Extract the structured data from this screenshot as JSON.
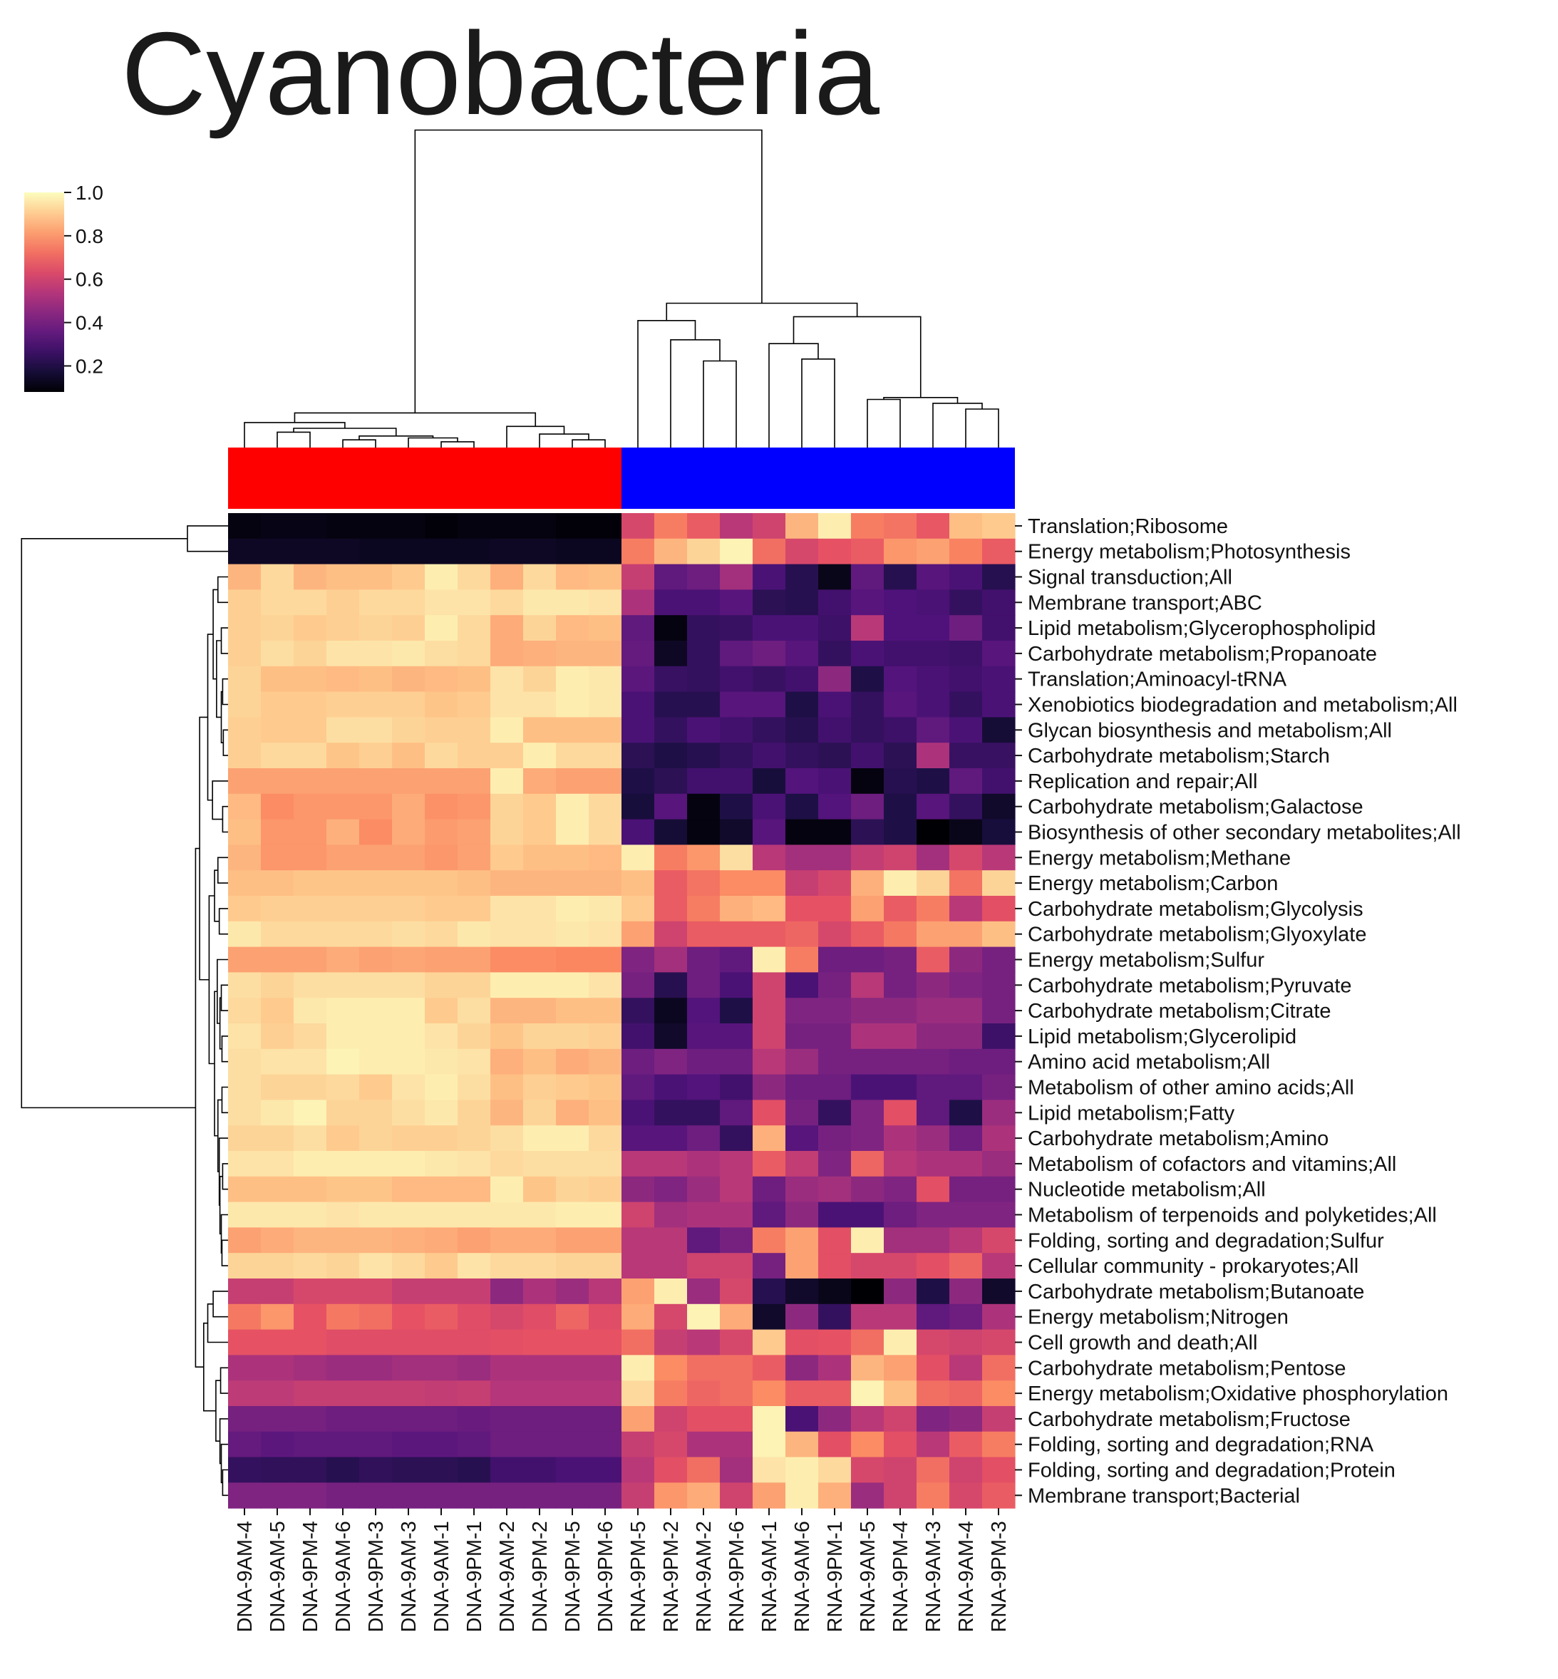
{
  "chart_data": {
    "type": "heatmap",
    "title": "Cyanobacteria",
    "colormap": "magma",
    "colorbar": {
      "min": 0.08,
      "max": 1.0,
      "ticks": [
        0.2,
        0.4,
        0.6,
        0.8,
        1.0
      ],
      "tick_labels": [
        "0.2",
        "0.4",
        "0.6",
        "0.8",
        "1.0"
      ]
    },
    "columns": [
      "DNA-9AM-4",
      "DNA-9AM-5",
      "DNA-9PM-4",
      "DNA-9AM-6",
      "DNA-9PM-3",
      "DNA-9AM-3",
      "DNA-9AM-1",
      "DNA-9PM-1",
      "DNA-9AM-2",
      "DNA-9PM-2",
      "DNA-9PM-5",
      "DNA-9PM-6",
      "RNA-9PM-5",
      "RNA-9PM-2",
      "RNA-9AM-2",
      "RNA-9PM-6",
      "RNA-9AM-1",
      "RNA-9AM-6",
      "RNA-9PM-1",
      "RNA-9AM-5",
      "RNA-9PM-4",
      "RNA-9AM-3",
      "RNA-9AM-4",
      "RNA-9PM-3"
    ],
    "column_groups": [
      {
        "color": "#ff0000",
        "start": 0,
        "end": 11
      },
      {
        "color": "#0000ff",
        "start": 12,
        "end": 23
      }
    ],
    "rows": [
      "Translation;Ribosome",
      "Energy metabolism;Photosynthesis",
      "Signal transduction;All",
      "Membrane transport;ABC",
      "Lipid metabolism;Glycerophospholipid",
      "Carbohydrate metabolism;Propanoate",
      "Translation;Aminoacyl-tRNA",
      "Xenobiotics biodegradation and metabolism;All",
      "Glycan biosynthesis and metabolism;All",
      "Carbohydrate metabolism;Starch",
      "Replication and repair;All",
      "Carbohydrate metabolism;Galactose",
      "Biosynthesis of other secondary metabolites;All",
      "Energy metabolism;Methane",
      "Energy metabolism;Carbon",
      "Carbohydrate metabolism;Glycolysis",
      "Carbohydrate metabolism;Glyoxylate",
      "Energy metabolism;Sulfur",
      "Carbohydrate metabolism;Pyruvate",
      "Carbohydrate metabolism;Citrate",
      "Lipid metabolism;Glycerolipid",
      "Amino acid metabolism;All",
      "Metabolism of other amino acids;All",
      "Lipid metabolism;Fatty",
      "Carbohydrate metabolism;Amino",
      "Metabolism of cofactors and vitamins;All",
      "Nucleotide metabolism;All",
      "Metabolism of terpenoids and polyketides;All",
      "Folding, sorting and degradation;Sulfur",
      "Cellular community - prokaryotes;All",
      "Carbohydrate metabolism;Butanoate",
      "Energy metabolism;Nitrogen",
      "Cell growth and death;All",
      "Carbohydrate metabolism;Pentose",
      "Energy metabolism;Oxidative phosphorylation",
      "Carbohydrate metabolism;Fructose",
      "Folding, sorting and degradation;RNA",
      "Folding, sorting and degradation;Protein",
      "Membrane transport;Bacterial"
    ],
    "values": [
      [
        0.1,
        0.11,
        0.11,
        0.1,
        0.1,
        0.1,
        0.09,
        0.1,
        0.1,
        0.1,
        0.09,
        0.09,
        0.62,
        0.75,
        0.68,
        0.55,
        0.6,
        0.86,
        0.97,
        0.75,
        0.73,
        0.67,
        0.88,
        0.9
      ],
      [
        0.14,
        0.14,
        0.14,
        0.14,
        0.13,
        0.13,
        0.13,
        0.13,
        0.14,
        0.14,
        0.13,
        0.13,
        0.75,
        0.86,
        0.92,
        0.98,
        0.72,
        0.62,
        0.66,
        0.68,
        0.8,
        0.82,
        0.76,
        0.68
      ],
      [
        0.86,
        0.93,
        0.86,
        0.88,
        0.88,
        0.9,
        0.97,
        0.93,
        0.85,
        0.93,
        0.87,
        0.88,
        0.58,
        0.35,
        0.38,
        0.5,
        0.3,
        0.22,
        0.12,
        0.35,
        0.22,
        0.33,
        0.3,
        0.22
      ],
      [
        0.91,
        0.93,
        0.93,
        0.91,
        0.93,
        0.93,
        0.95,
        0.95,
        0.93,
        0.96,
        0.96,
        0.95,
        0.52,
        0.3,
        0.3,
        0.33,
        0.23,
        0.22,
        0.28,
        0.33,
        0.31,
        0.3,
        0.25,
        0.28
      ],
      [
        0.91,
        0.92,
        0.9,
        0.91,
        0.92,
        0.91,
        0.97,
        0.93,
        0.84,
        0.92,
        0.87,
        0.88,
        0.35,
        0.1,
        0.25,
        0.26,
        0.3,
        0.3,
        0.27,
        0.55,
        0.31,
        0.31,
        0.38,
        0.28
      ],
      [
        0.91,
        0.94,
        0.92,
        0.95,
        0.95,
        0.96,
        0.94,
        0.93,
        0.84,
        0.85,
        0.86,
        0.86,
        0.36,
        0.14,
        0.25,
        0.35,
        0.38,
        0.33,
        0.25,
        0.3,
        0.28,
        0.28,
        0.27,
        0.33
      ],
      [
        0.92,
        0.88,
        0.88,
        0.87,
        0.88,
        0.86,
        0.87,
        0.88,
        0.95,
        0.92,
        0.97,
        0.96,
        0.34,
        0.26,
        0.25,
        0.28,
        0.26,
        0.28,
        0.45,
        0.2,
        0.32,
        0.3,
        0.28,
        0.3
      ],
      [
        0.92,
        0.9,
        0.9,
        0.91,
        0.91,
        0.91,
        0.89,
        0.9,
        0.95,
        0.95,
        0.97,
        0.96,
        0.3,
        0.22,
        0.22,
        0.33,
        0.33,
        0.2,
        0.3,
        0.25,
        0.33,
        0.3,
        0.25,
        0.3
      ],
      [
        0.91,
        0.9,
        0.9,
        0.94,
        0.94,
        0.92,
        0.91,
        0.91,
        0.97,
        0.88,
        0.88,
        0.88,
        0.3,
        0.25,
        0.3,
        0.28,
        0.25,
        0.22,
        0.28,
        0.25,
        0.27,
        0.35,
        0.3,
        0.17
      ],
      [
        0.91,
        0.93,
        0.93,
        0.89,
        0.91,
        0.88,
        0.93,
        0.91,
        0.91,
        0.97,
        0.93,
        0.93,
        0.23,
        0.2,
        0.22,
        0.25,
        0.28,
        0.25,
        0.23,
        0.28,
        0.23,
        0.52,
        0.26,
        0.26
      ],
      [
        0.82,
        0.82,
        0.82,
        0.82,
        0.82,
        0.82,
        0.82,
        0.82,
        0.97,
        0.84,
        0.82,
        0.82,
        0.2,
        0.23,
        0.28,
        0.28,
        0.18,
        0.32,
        0.3,
        0.1,
        0.22,
        0.2,
        0.35,
        0.28
      ],
      [
        0.87,
        0.78,
        0.8,
        0.8,
        0.8,
        0.84,
        0.79,
        0.8,
        0.92,
        0.9,
        0.97,
        0.93,
        0.18,
        0.33,
        0.1,
        0.2,
        0.3,
        0.2,
        0.32,
        0.38,
        0.2,
        0.33,
        0.25,
        0.15
      ],
      [
        0.88,
        0.8,
        0.8,
        0.85,
        0.78,
        0.84,
        0.81,
        0.82,
        0.92,
        0.9,
        0.97,
        0.93,
        0.3,
        0.17,
        0.1,
        0.15,
        0.33,
        0.1,
        0.1,
        0.23,
        0.2,
        0.03,
        0.12,
        0.18
      ],
      [
        0.86,
        0.8,
        0.8,
        0.82,
        0.82,
        0.82,
        0.8,
        0.82,
        0.9,
        0.88,
        0.88,
        0.87,
        0.97,
        0.75,
        0.8,
        0.94,
        0.55,
        0.5,
        0.5,
        0.57,
        0.6,
        0.5,
        0.62,
        0.55
      ],
      [
        0.88,
        0.88,
        0.89,
        0.89,
        0.89,
        0.89,
        0.89,
        0.88,
        0.86,
        0.86,
        0.86,
        0.86,
        0.88,
        0.68,
        0.73,
        0.78,
        0.78,
        0.58,
        0.62,
        0.85,
        0.97,
        0.92,
        0.73,
        0.92
      ],
      [
        0.9,
        0.91,
        0.91,
        0.91,
        0.91,
        0.91,
        0.9,
        0.9,
        0.95,
        0.95,
        0.97,
        0.96,
        0.9,
        0.68,
        0.75,
        0.85,
        0.87,
        0.66,
        0.66,
        0.82,
        0.68,
        0.75,
        0.55,
        0.65
      ],
      [
        0.96,
        0.93,
        0.93,
        0.93,
        0.93,
        0.94,
        0.93,
        0.96,
        0.95,
        0.95,
        0.96,
        0.95,
        0.82,
        0.6,
        0.68,
        0.68,
        0.68,
        0.7,
        0.62,
        0.68,
        0.74,
        0.82,
        0.82,
        0.88
      ],
      [
        0.82,
        0.82,
        0.82,
        0.84,
        0.82,
        0.83,
        0.82,
        0.82,
        0.78,
        0.78,
        0.77,
        0.77,
        0.42,
        0.5,
        0.38,
        0.35,
        0.97,
        0.75,
        0.38,
        0.38,
        0.4,
        0.68,
        0.45,
        0.4
      ],
      [
        0.94,
        0.92,
        0.94,
        0.94,
        0.94,
        0.94,
        0.92,
        0.92,
        0.97,
        0.97,
        0.97,
        0.95,
        0.4,
        0.22,
        0.38,
        0.3,
        0.6,
        0.3,
        0.4,
        0.55,
        0.4,
        0.45,
        0.42,
        0.4
      ],
      [
        0.93,
        0.9,
        0.96,
        0.97,
        0.97,
        0.97,
        0.9,
        0.94,
        0.86,
        0.86,
        0.88,
        0.88,
        0.25,
        0.13,
        0.32,
        0.2,
        0.6,
        0.42,
        0.42,
        0.45,
        0.45,
        0.48,
        0.48,
        0.4
      ],
      [
        0.95,
        0.91,
        0.93,
        0.97,
        0.97,
        0.97,
        0.95,
        0.92,
        0.89,
        0.92,
        0.92,
        0.91,
        0.28,
        0.15,
        0.33,
        0.33,
        0.6,
        0.4,
        0.4,
        0.52,
        0.52,
        0.45,
        0.45,
        0.27
      ],
      [
        0.94,
        0.95,
        0.95,
        0.98,
        0.97,
        0.97,
        0.96,
        0.95,
        0.85,
        0.88,
        0.84,
        0.86,
        0.38,
        0.42,
        0.38,
        0.38,
        0.55,
        0.48,
        0.4,
        0.4,
        0.4,
        0.4,
        0.38,
        0.38
      ],
      [
        0.94,
        0.92,
        0.92,
        0.93,
        0.9,
        0.95,
        0.97,
        0.94,
        0.88,
        0.91,
        0.9,
        0.89,
        0.35,
        0.3,
        0.32,
        0.28,
        0.45,
        0.38,
        0.38,
        0.3,
        0.3,
        0.35,
        0.35,
        0.4
      ],
      [
        0.94,
        0.96,
        0.98,
        0.92,
        0.92,
        0.94,
        0.96,
        0.92,
        0.86,
        0.92,
        0.85,
        0.88,
        0.3,
        0.25,
        0.25,
        0.35,
        0.65,
        0.4,
        0.25,
        0.42,
        0.65,
        0.35,
        0.2,
        0.48
      ],
      [
        0.92,
        0.92,
        0.94,
        0.9,
        0.92,
        0.91,
        0.91,
        0.92,
        0.94,
        0.97,
        0.97,
        0.93,
        0.33,
        0.33,
        0.38,
        0.25,
        0.85,
        0.33,
        0.4,
        0.42,
        0.52,
        0.48,
        0.38,
        0.52
      ],
      [
        0.95,
        0.95,
        0.97,
        0.97,
        0.97,
        0.97,
        0.96,
        0.95,
        0.93,
        0.94,
        0.94,
        0.94,
        0.55,
        0.55,
        0.52,
        0.55,
        0.68,
        0.57,
        0.42,
        0.7,
        0.55,
        0.52,
        0.52,
        0.48
      ],
      [
        0.88,
        0.88,
        0.88,
        0.89,
        0.89,
        0.87,
        0.87,
        0.87,
        0.97,
        0.89,
        0.92,
        0.91,
        0.45,
        0.42,
        0.48,
        0.55,
        0.38,
        0.48,
        0.5,
        0.45,
        0.42,
        0.65,
        0.4,
        0.4
      ],
      [
        0.96,
        0.96,
        0.96,
        0.95,
        0.96,
        0.96,
        0.96,
        0.96,
        0.96,
        0.96,
        0.97,
        0.97,
        0.6,
        0.5,
        0.52,
        0.52,
        0.35,
        0.45,
        0.3,
        0.3,
        0.38,
        0.42,
        0.42,
        0.42
      ],
      [
        0.82,
        0.84,
        0.86,
        0.86,
        0.86,
        0.85,
        0.84,
        0.82,
        0.84,
        0.84,
        0.82,
        0.82,
        0.55,
        0.55,
        0.35,
        0.4,
        0.75,
        0.82,
        0.65,
        0.97,
        0.5,
        0.5,
        0.55,
        0.62
      ],
      [
        0.92,
        0.92,
        0.93,
        0.92,
        0.95,
        0.93,
        0.9,
        0.95,
        0.93,
        0.93,
        0.92,
        0.92,
        0.55,
        0.55,
        0.6,
        0.6,
        0.4,
        0.82,
        0.65,
        0.62,
        0.62,
        0.65,
        0.7,
        0.55
      ],
      [
        0.58,
        0.58,
        0.62,
        0.62,
        0.62,
        0.58,
        0.58,
        0.58,
        0.45,
        0.52,
        0.48,
        0.55,
        0.82,
        0.97,
        0.48,
        0.62,
        0.22,
        0.15,
        0.12,
        0.05,
        0.45,
        0.2,
        0.45,
        0.15
      ],
      [
        0.74,
        0.8,
        0.66,
        0.74,
        0.72,
        0.66,
        0.68,
        0.64,
        0.62,
        0.64,
        0.7,
        0.64,
        0.84,
        0.62,
        0.98,
        0.84,
        0.15,
        0.45,
        0.25,
        0.55,
        0.55,
        0.35,
        0.38,
        0.52
      ],
      [
        0.66,
        0.66,
        0.66,
        0.64,
        0.64,
        0.64,
        0.64,
        0.64,
        0.65,
        0.66,
        0.66,
        0.66,
        0.72,
        0.58,
        0.55,
        0.62,
        0.9,
        0.65,
        0.66,
        0.72,
        0.97,
        0.62,
        0.6,
        0.62
      ],
      [
        0.52,
        0.52,
        0.5,
        0.48,
        0.48,
        0.5,
        0.5,
        0.48,
        0.52,
        0.52,
        0.52,
        0.52,
        0.97,
        0.78,
        0.72,
        0.72,
        0.68,
        0.45,
        0.52,
        0.86,
        0.82,
        0.65,
        0.55,
        0.72
      ],
      [
        0.56,
        0.56,
        0.58,
        0.58,
        0.58,
        0.58,
        0.57,
        0.58,
        0.54,
        0.54,
        0.54,
        0.54,
        0.93,
        0.75,
        0.7,
        0.72,
        0.78,
        0.68,
        0.68,
        0.98,
        0.88,
        0.72,
        0.7,
        0.78
      ],
      [
        0.4,
        0.4,
        0.4,
        0.38,
        0.38,
        0.38,
        0.38,
        0.37,
        0.38,
        0.38,
        0.38,
        0.38,
        0.82,
        0.6,
        0.65,
        0.65,
        0.98,
        0.3,
        0.45,
        0.55,
        0.6,
        0.42,
        0.45,
        0.58
      ],
      [
        0.36,
        0.34,
        0.35,
        0.35,
        0.35,
        0.34,
        0.34,
        0.35,
        0.38,
        0.38,
        0.38,
        0.38,
        0.58,
        0.62,
        0.52,
        0.52,
        0.98,
        0.86,
        0.65,
        0.78,
        0.65,
        0.55,
        0.68,
        0.75
      ],
      [
        0.25,
        0.24,
        0.24,
        0.22,
        0.24,
        0.23,
        0.23,
        0.22,
        0.28,
        0.28,
        0.3,
        0.3,
        0.55,
        0.65,
        0.72,
        0.5,
        0.95,
        0.97,
        0.93,
        0.62,
        0.6,
        0.72,
        0.6,
        0.65
      ],
      [
        0.42,
        0.42,
        0.42,
        0.4,
        0.4,
        0.4,
        0.4,
        0.4,
        0.4,
        0.4,
        0.4,
        0.4,
        0.58,
        0.8,
        0.84,
        0.6,
        0.82,
        0.97,
        0.85,
        0.48,
        0.6,
        0.75,
        0.62,
        0.68
      ]
    ]
  }
}
